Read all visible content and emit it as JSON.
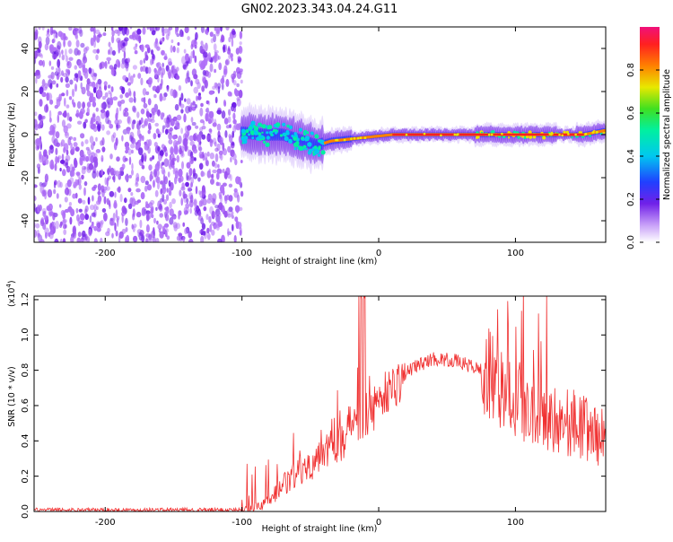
{
  "figure": {
    "title": "GN02.2023.343.04.24.G11"
  },
  "colors": {
    "signal_line": "#f03030",
    "colormap": [
      "#ffffff",
      "#b070f8",
      "#7020e8",
      "#2040ff",
      "#00c8f0",
      "#00f0a0",
      "#40e020",
      "#e8e800",
      "#ff8000",
      "#ff2020",
      "#f0107a"
    ]
  },
  "chart_data": [
    {
      "type": "heatmap",
      "xlabel": "Height of straight line (km)",
      "ylabel": "Frequency (Hz)",
      "xlim": [
        -252,
        166
      ],
      "ylim": [
        -50,
        50
      ],
      "xticks": [
        -200,
        -100,
        0,
        100
      ],
      "yticks": [
        -40,
        -20,
        0,
        20,
        40
      ],
      "noise_region_x": [
        -252,
        -100
      ],
      "ridge": [
        {
          "x": -100,
          "y": 1
        },
        {
          "x": -85,
          "y": 0
        },
        {
          "x": -70,
          "y": 0
        },
        {
          "x": -55,
          "y": -3
        },
        {
          "x": -45,
          "y": -5
        },
        {
          "x": -35,
          "y": -3
        },
        {
          "x": -20,
          "y": -2
        },
        {
          "x": -5,
          "y": -1
        },
        {
          "x": 10,
          "y": 0
        },
        {
          "x": 70,
          "y": 0
        },
        {
          "x": 100,
          "y": 0
        },
        {
          "x": 130,
          "y": 0
        },
        {
          "x": 150,
          "y": 0
        },
        {
          "x": 166,
          "y": 2
        }
      ],
      "colorbar": {
        "label": "Normalized spectral amplitude",
        "range": [
          0.0,
          1.0
        ],
        "ticks": [
          "0.0",
          "0.2",
          "0.4",
          "0.6",
          "0.8"
        ]
      }
    },
    {
      "type": "line",
      "xlabel": "Height of straight line (km)",
      "ylabel": "SNR (10 * v/v)",
      "scale_label": "(x10",
      "scale_exp": "4",
      "scale_close": ")",
      "xlim": [
        -252,
        166
      ],
      "ylim": [
        0.0,
        1.22
      ],
      "xticks": [
        -200,
        -100,
        0,
        100
      ],
      "yticks": [
        "0.0",
        "0.2",
        "0.4",
        "0.6",
        "0.8",
        "1.0",
        "1.2"
      ],
      "envelope": [
        {
          "x": -252,
          "y": 0.01
        },
        {
          "x": -100,
          "y": 0.01
        },
        {
          "x": -85,
          "y": 0.03
        },
        {
          "x": -70,
          "y": 0.15
        },
        {
          "x": -60,
          "y": 0.22
        },
        {
          "x": -50,
          "y": 0.28
        },
        {
          "x": -40,
          "y": 0.38
        },
        {
          "x": -25,
          "y": 0.45
        },
        {
          "x": -15,
          "y": 0.55
        },
        {
          "x": -5,
          "y": 0.62
        },
        {
          "x": 10,
          "y": 0.72
        },
        {
          "x": 25,
          "y": 0.82
        },
        {
          "x": 40,
          "y": 0.87
        },
        {
          "x": 55,
          "y": 0.86
        },
        {
          "x": 70,
          "y": 0.82
        },
        {
          "x": 85,
          "y": 0.78
        },
        {
          "x": 95,
          "y": 0.72
        },
        {
          "x": 110,
          "y": 0.62
        },
        {
          "x": 130,
          "y": 0.55
        },
        {
          "x": 150,
          "y": 0.5
        },
        {
          "x": 166,
          "y": 0.42
        }
      ]
    }
  ]
}
